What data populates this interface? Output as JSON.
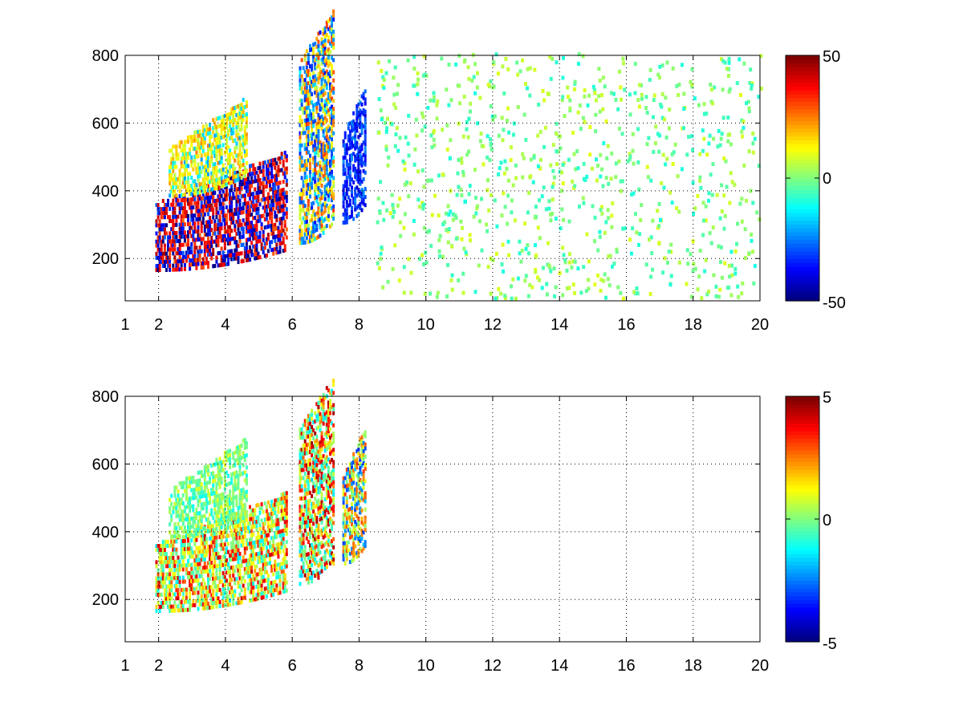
{
  "colormap": "jet",
  "chart_data": [
    {
      "type": "heatmap",
      "title": "",
      "xlabel": "",
      "ylabel": "",
      "xlim": [
        1,
        20
      ],
      "ylim": [
        75,
        800
      ],
      "xticks": [
        "1",
        "2",
        "4",
        "6",
        "8",
        "10",
        "12",
        "14",
        "16",
        "18",
        "20"
      ],
      "yticks": [
        "200",
        "400",
        "600",
        "800"
      ],
      "grid": true,
      "grid_x": [
        2,
        4,
        6,
        8,
        10,
        12,
        14,
        16,
        18,
        20
      ],
      "grid_y": [
        200,
        400,
        600,
        800
      ],
      "colorbar": {
        "min": -50,
        "max": 50,
        "ticks": [
          "50",
          "0",
          "-50"
        ]
      },
      "structures": [
        {
          "kind": "band",
          "x0": 1.9,
          "x1": 5.8,
          "lowY": 200,
          "highY": 360,
          "values": [
            35,
            40,
            -35,
            -45
          ]
        },
        {
          "kind": "band",
          "x0": 2.3,
          "x1": 4.6,
          "lowY": 420,
          "highY": 520,
          "values": [
            12,
            18,
            10,
            -15
          ]
        },
        {
          "kind": "band",
          "x0": 6.2,
          "x1": 7.2,
          "lowY": 280,
          "highY": 780,
          "values": [
            -30,
            25,
            -20,
            10
          ]
        },
        {
          "kind": "band",
          "x0": 7.5,
          "x1": 8.2,
          "lowY": 340,
          "highY": 560,
          "values": [
            -30,
            -35
          ]
        }
      ]
    },
    {
      "type": "heatmap",
      "title": "",
      "xlabel": "",
      "ylabel": "",
      "xlim": [
        1,
        20
      ],
      "ylim": [
        75,
        800
      ],
      "xticks": [
        "1",
        "2",
        "4",
        "6",
        "8",
        "10",
        "12",
        "14",
        "16",
        "18",
        "20"
      ],
      "yticks": [
        "200",
        "400",
        "600",
        "800"
      ],
      "grid": true,
      "grid_x": [
        2,
        4,
        6,
        8,
        10,
        12,
        14,
        16,
        18,
        20
      ],
      "grid_y": [
        200,
        400,
        600,
        800
      ],
      "colorbar": {
        "min": -5,
        "max": 5,
        "ticks": [
          "5",
          "0",
          "-5"
        ]
      },
      "structures": [
        {
          "kind": "band",
          "x0": 1.9,
          "x1": 5.8,
          "lowY": 200,
          "highY": 360,
          "values": [
            0.5,
            1.5,
            -0.8,
            3.5
          ]
        },
        {
          "kind": "band",
          "x0": 2.3,
          "x1": 4.6,
          "lowY": 420,
          "highY": 520,
          "values": [
            0.3,
            -0.5
          ]
        },
        {
          "kind": "band",
          "x0": 6.2,
          "x1": 7.2,
          "lowY": 280,
          "highY": 700,
          "values": [
            0.2,
            -1,
            2,
            4
          ]
        },
        {
          "kind": "band",
          "x0": 7.5,
          "x1": 8.2,
          "lowY": 340,
          "highY": 560,
          "values": [
            -2.5,
            0.5,
            2.5
          ]
        }
      ]
    }
  ]
}
